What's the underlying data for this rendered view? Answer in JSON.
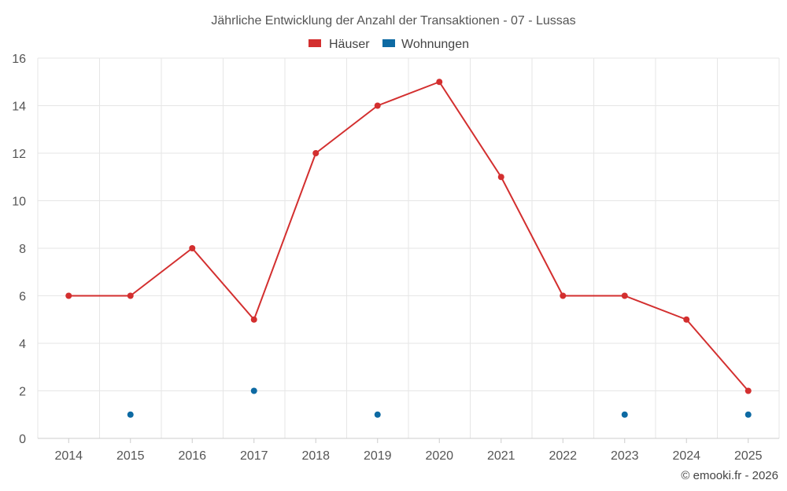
{
  "chart_data": {
    "type": "line",
    "title": "Jährliche Entwicklung der Anzahl der Transaktionen - 07 - Lussas",
    "xlabel": "",
    "ylabel": "",
    "x": [
      "2014",
      "2015",
      "2016",
      "2017",
      "2018",
      "2019",
      "2020",
      "2021",
      "2022",
      "2023",
      "2024",
      "2025"
    ],
    "ylim": [
      0,
      16
    ],
    "yticks": [
      0,
      2,
      4,
      6,
      8,
      10,
      12,
      14,
      16
    ],
    "grid": true,
    "legend_position": "top",
    "series": [
      {
        "name": "Häuser",
        "color": "#d32f2f",
        "style": "line-with-markers",
        "values": [
          6,
          6,
          8,
          5,
          12,
          14,
          15,
          11,
          6,
          6,
          5,
          2
        ]
      },
      {
        "name": "Wohnungen",
        "color": "#0d6aa3",
        "style": "markers-only",
        "values": [
          null,
          1,
          null,
          2,
          null,
          1,
          null,
          null,
          null,
          1,
          null,
          1
        ]
      }
    ]
  },
  "credit": "© emooki.fr - 2026"
}
